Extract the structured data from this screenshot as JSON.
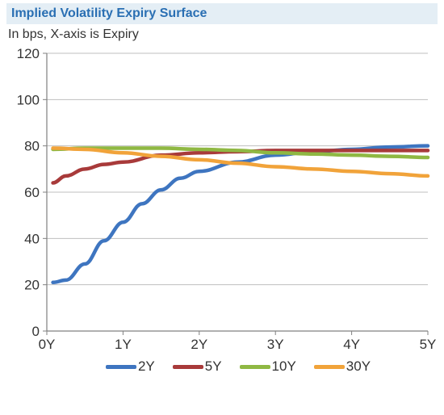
{
  "header": {
    "title": "Implied Volatility Expiry Surface",
    "title_color": "#2a6fb3",
    "title_bg": "#e4eef5",
    "subtitle": "In bps, X-axis is Expiry"
  },
  "chart": {
    "type": "line",
    "background_color": "#ffffff",
    "plot_border_color": "#808080",
    "grid_color": "#bfbfbf",
    "axis_font_size": 17,
    "axis_font_color": "#333333",
    "x": {
      "min": 0,
      "max": 5,
      "ticks": [
        0,
        1,
        2,
        3,
        4,
        5
      ],
      "tick_labels": [
        "0Y",
        "1Y",
        "2Y",
        "3Y",
        "4Y",
        "5Y"
      ]
    },
    "y": {
      "min": 0,
      "max": 120,
      "ticks": [
        0,
        20,
        40,
        60,
        80,
        100,
        120
      ],
      "tick_labels": [
        "0",
        "20",
        "40",
        "60",
        "80",
        "100",
        "120"
      ]
    },
    "line_width": 4.5,
    "series": [
      {
        "name": "2Y",
        "color": "#3e75c0",
        "points": [
          [
            0.08,
            21
          ],
          [
            0.25,
            22
          ],
          [
            0.5,
            29
          ],
          [
            0.75,
            39
          ],
          [
            1.0,
            47
          ],
          [
            1.25,
            55
          ],
          [
            1.5,
            61
          ],
          [
            1.75,
            66
          ],
          [
            2.0,
            69
          ],
          [
            2.5,
            73
          ],
          [
            3.0,
            76
          ],
          [
            3.5,
            77.5
          ],
          [
            4.0,
            78.5
          ],
          [
            4.5,
            79.5
          ],
          [
            5.0,
            80
          ]
        ]
      },
      {
        "name": "5Y",
        "color": "#a83a3a",
        "points": [
          [
            0.08,
            64
          ],
          [
            0.25,
            67
          ],
          [
            0.5,
            70
          ],
          [
            0.75,
            72
          ],
          [
            1.0,
            73
          ],
          [
            1.5,
            76
          ],
          [
            2.0,
            77
          ],
          [
            2.5,
            77.5
          ],
          [
            3.0,
            78
          ],
          [
            3.5,
            78
          ],
          [
            4.0,
            78
          ],
          [
            4.5,
            78
          ],
          [
            5.0,
            78
          ]
        ]
      },
      {
        "name": "10Y",
        "color": "#8fb843",
        "points": [
          [
            0.08,
            78.5
          ],
          [
            0.5,
            79
          ],
          [
            1.0,
            79
          ],
          [
            1.5,
            79
          ],
          [
            2.0,
            78.5
          ],
          [
            2.5,
            78
          ],
          [
            3.0,
            77
          ],
          [
            3.5,
            76.5
          ],
          [
            4.0,
            76
          ],
          [
            4.5,
            75.5
          ],
          [
            5.0,
            75
          ]
        ]
      },
      {
        "name": "30Y",
        "color": "#f1a33a",
        "points": [
          [
            0.08,
            79
          ],
          [
            0.5,
            78.5
          ],
          [
            1.0,
            77
          ],
          [
            1.5,
            75.5
          ],
          [
            2.0,
            74
          ],
          [
            2.5,
            72.5
          ],
          [
            3.0,
            71
          ],
          [
            3.5,
            70
          ],
          [
            4.0,
            69
          ],
          [
            4.5,
            68
          ],
          [
            5.0,
            67
          ]
        ]
      }
    ],
    "legend": {
      "position": "bottom",
      "font_size": 17,
      "swatch_width": 38,
      "swatch_height": 5
    }
  }
}
